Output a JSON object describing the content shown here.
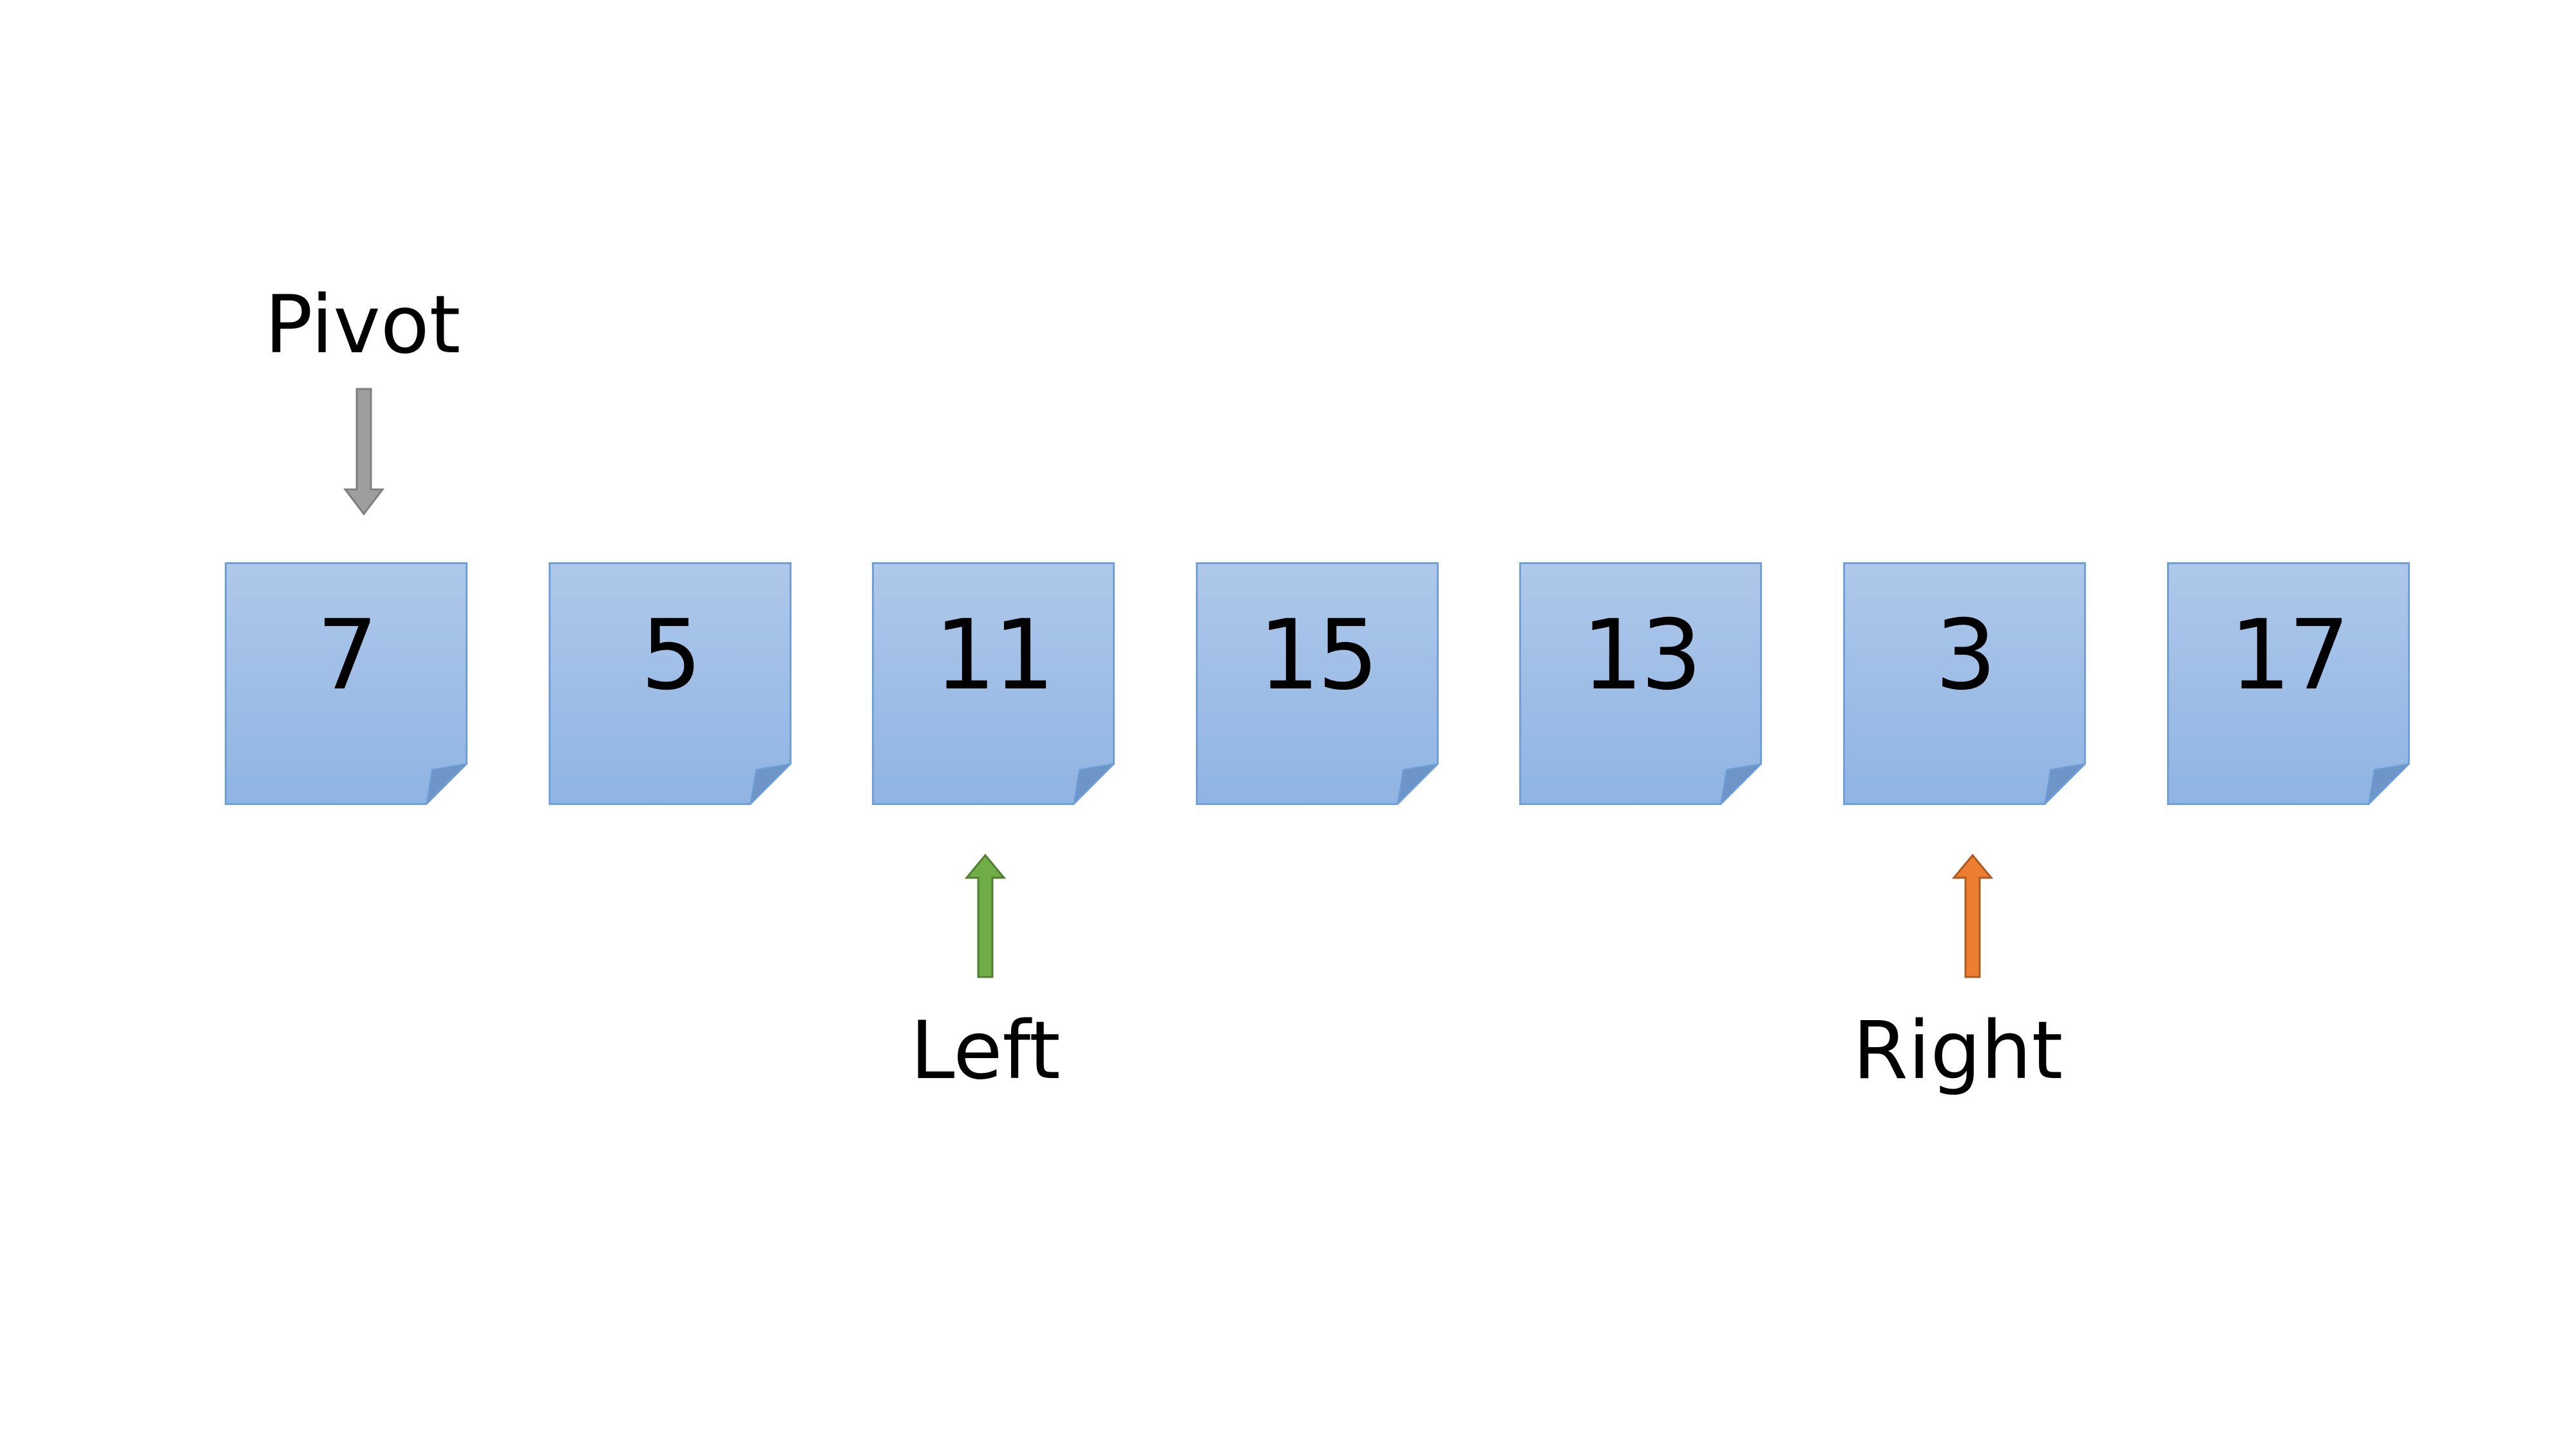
{
  "diagram": {
    "array_values": [
      "7",
      "5",
      "11",
      "15",
      "13",
      "3",
      "17"
    ],
    "pointers": {
      "pivot": {
        "label": "Pivot",
        "index": 0,
        "direction": "down",
        "color": "#9E9E9E"
      },
      "left": {
        "label": "Left",
        "index": 2,
        "direction": "up",
        "color": "#70AD47"
      },
      "right": {
        "label": "Right",
        "index": 5,
        "direction": "up",
        "color": "#ED7D31"
      }
    },
    "card_colors": {
      "fill_top": "#AFC8EA",
      "fill_bottom": "#8FB4E3",
      "border": "#6FA0D8",
      "fold": "#6E95C8"
    }
  }
}
